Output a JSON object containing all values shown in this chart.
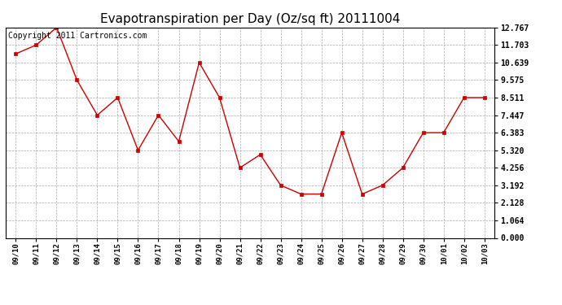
{
  "title": "Evapotranspiration per Day (Oz/sq ft) 20111004",
  "copyright_text": "Copyright 2011 Cartronics.com",
  "x_labels": [
    "09/10",
    "09/11",
    "09/12",
    "09/13",
    "09/14",
    "09/15",
    "09/16",
    "09/17",
    "09/18",
    "09/19",
    "09/20",
    "09/21",
    "09/22",
    "09/23",
    "09/24",
    "09/25",
    "09/26",
    "09/27",
    "09/28",
    "09/29",
    "09/30",
    "10/01",
    "10/02",
    "10/03"
  ],
  "y_values": [
    11.168,
    11.703,
    12.767,
    9.575,
    7.447,
    8.511,
    5.32,
    7.447,
    5.854,
    10.639,
    8.511,
    4.256,
    5.054,
    3.192,
    2.66,
    2.66,
    6.383,
    2.66,
    3.192,
    4.256,
    6.383,
    6.383,
    8.511,
    8.511
  ],
  "line_color": "#cc0000",
  "marker_color": "#cc0000",
  "background_color": "#ffffff",
  "grid_color": "#aaaaaa",
  "title_fontsize": 11,
  "copyright_fontsize": 7,
  "y_ticks": [
    0.0,
    1.064,
    2.128,
    3.192,
    4.256,
    5.32,
    6.383,
    7.447,
    8.511,
    9.575,
    10.639,
    11.703,
    12.767
  ],
  "ylim": [
    0.0,
    12.767
  ],
  "tick_label_color": "#000000"
}
